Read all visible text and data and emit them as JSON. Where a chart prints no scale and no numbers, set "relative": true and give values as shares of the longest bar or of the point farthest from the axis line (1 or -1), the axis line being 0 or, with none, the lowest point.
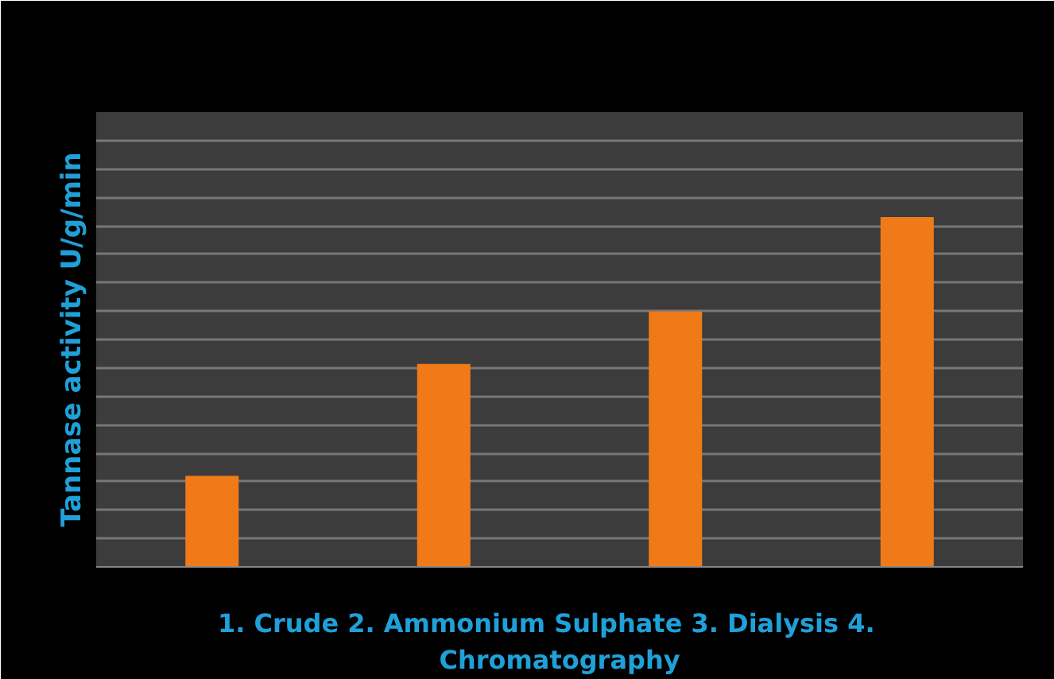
{
  "chart_data": {
    "type": "bar",
    "relative": true,
    "ylabel": "Tannase activity U/g/min",
    "xlabel": "1. Crude  2. Ammonium Sulphate  3. Dialysis  4. Chromatography",
    "categories": [
      null,
      null,
      null,
      null
    ],
    "values": [
      0.26,
      0.58,
      0.73,
      1
    ],
    "color": "#f07a18",
    "grid": "y"
  }
}
